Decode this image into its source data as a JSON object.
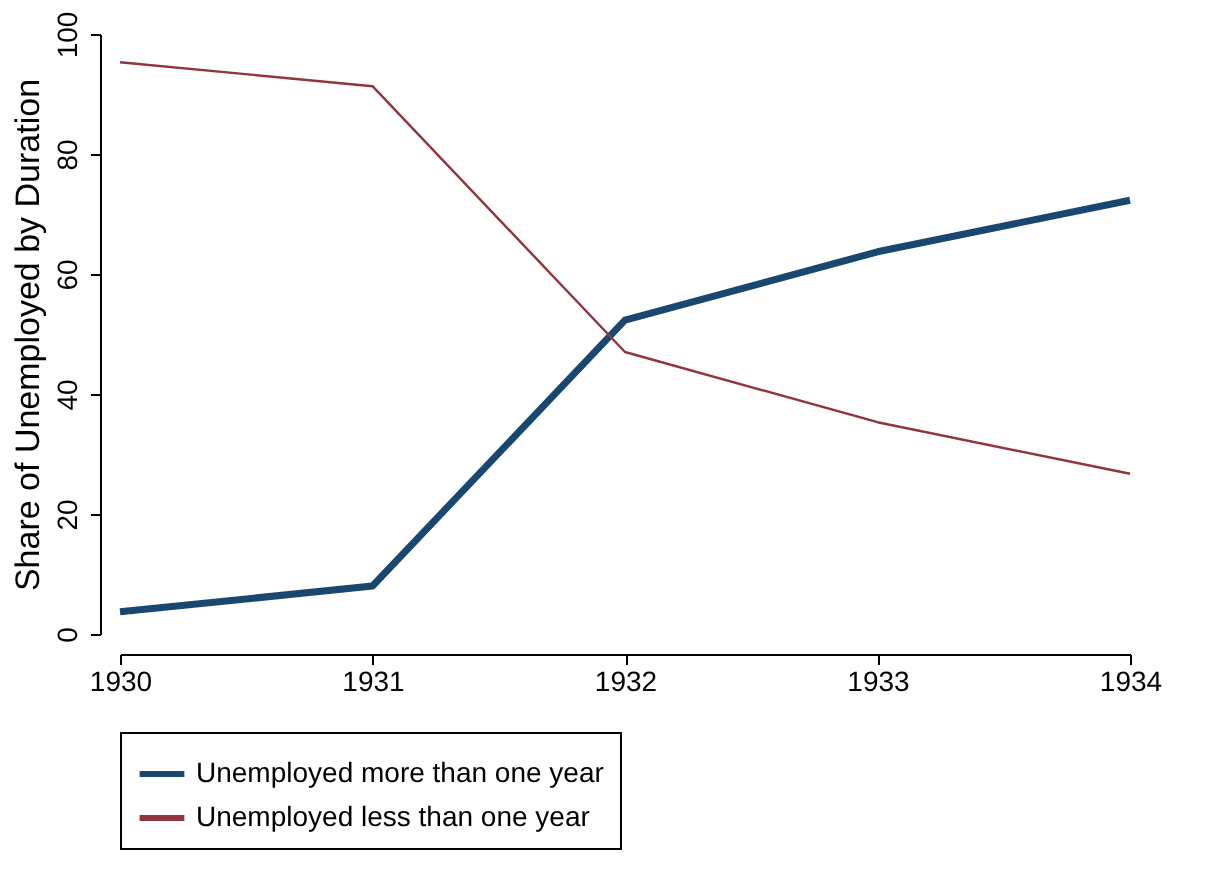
{
  "chart_data": {
    "type": "line",
    "ylabel": "Share of Unemployed by Duration",
    "x": [
      1930,
      1931,
      1932,
      1933,
      1934
    ],
    "series": [
      {
        "name": "Unemployed more than one year",
        "color": "#1a476f",
        "values": [
          3.7,
          8,
          52.3,
          63.7,
          72.3
        ]
      },
      {
        "name": "Unemployed less than one year",
        "color": "#90353b",
        "values": [
          95.3,
          91.3,
          47,
          35.3,
          26.7
        ]
      }
    ],
    "xlim": [
      1930,
      1934
    ],
    "xticks": [
      1930,
      1931,
      1932,
      1933,
      1934
    ],
    "ylim": [
      0,
      100
    ],
    "yticks": [
      0,
      20,
      40,
      60,
      80,
      100
    ],
    "grid": false,
    "legend": "bottom",
    "marker": "none",
    "line_style": "solid"
  }
}
